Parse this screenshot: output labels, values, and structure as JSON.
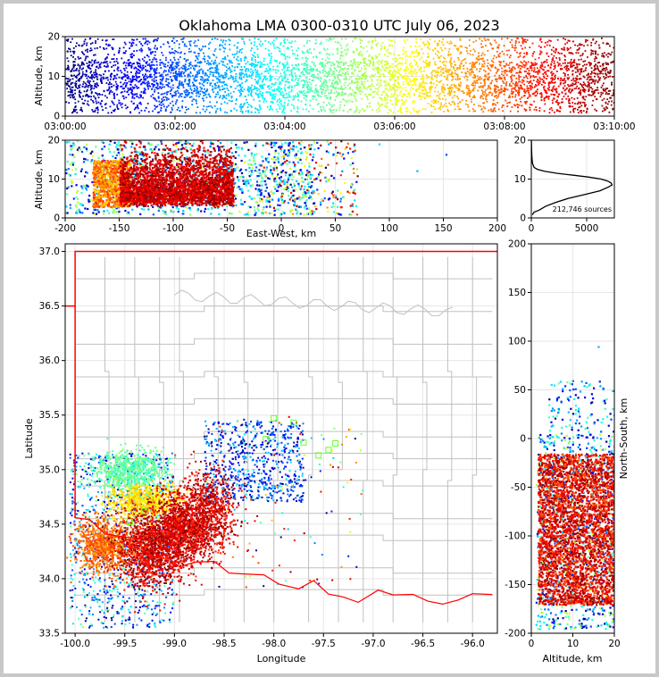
{
  "title": "Oklahoma LMA 0300-0310 UTC July 06, 2023",
  "colors": {
    "state_border": "#ff0000",
    "county_lines": "#c0c0c0",
    "grid": "#e6e6e6",
    "hist_line": "#000000"
  },
  "colormap": "jet",
  "chart_data": [
    {
      "id": "time_altitude",
      "type": "scatter",
      "xlabel": "",
      "ylabel": "Altitude, km",
      "xticks": [
        "03:00:00",
        "03:02:00",
        "03:04:00",
        "03:06:00",
        "03:08:00",
        "03:10:00"
      ],
      "xlim_minutes": [
        0,
        10
      ],
      "ylim": [
        0,
        20
      ],
      "yticks": [
        0,
        10,
        20
      ],
      "color_by": "time",
      "grid": true
    },
    {
      "id": "eastwest_altitude",
      "type": "scatter",
      "xlabel": "East-West, km",
      "ylabel": "Altitude, km",
      "xlim": [
        -200,
        200
      ],
      "xticks": [
        -200,
        -150,
        -100,
        -50,
        0,
        50,
        100,
        150,
        200
      ],
      "ylim": [
        0,
        20
      ],
      "yticks": [
        0,
        10,
        20
      ],
      "color_by": "time",
      "grid": true
    },
    {
      "id": "altitude_histogram",
      "type": "line",
      "annotation": "212,746 sources",
      "xlim": [
        0,
        7500
      ],
      "xticks": [
        0,
        5000
      ],
      "ylim": [
        0,
        20
      ],
      "yticks": [
        0,
        10,
        20
      ],
      "profile": {
        "altitude_km": [
          0.8,
          1.5,
          2,
          3,
          4,
          5,
          6,
          7,
          8,
          8.5,
          9,
          9.5,
          10,
          10.5,
          11,
          11.5,
          12,
          12.5,
          13,
          14,
          15,
          16,
          17,
          18,
          19,
          20
        ],
        "count": [
          100,
          250,
          700,
          1300,
          2200,
          3300,
          4800,
          6200,
          7000,
          7300,
          7200,
          6900,
          6300,
          5200,
          3800,
          2300,
          1200,
          550,
          250,
          110,
          70,
          50,
          35,
          25,
          15,
          5
        ]
      },
      "grid": true
    },
    {
      "id": "plan_view",
      "type": "scatter",
      "xlabel": "Longitude",
      "ylabel": "Latitude",
      "xlim": [
        -100.1,
        -95.75
      ],
      "ylim": [
        33.5,
        37.07
      ],
      "xticks": [
        -100.0,
        -99.5,
        -99.0,
        -98.5,
        -98.0,
        -97.5,
        -97.0,
        -96.5,
        -96.0
      ],
      "yticks": [
        33.5,
        34.0,
        34.5,
        35.0,
        35.5,
        36.0,
        36.5,
        37.0
      ],
      "color_by": "time",
      "grid": true
    },
    {
      "id": "altitude_northsouth",
      "type": "scatter",
      "xlabel": "Altitude, km",
      "ylabel": "North-South, km",
      "xlim": [
        0,
        20
      ],
      "xticks": [
        0,
        10,
        20
      ],
      "ylim": [
        -200,
        200
      ],
      "yticks": [
        -200,
        -150,
        -100,
        -50,
        0,
        50,
        100,
        150,
        200
      ],
      "color_by": "time",
      "grid": true
    }
  ]
}
